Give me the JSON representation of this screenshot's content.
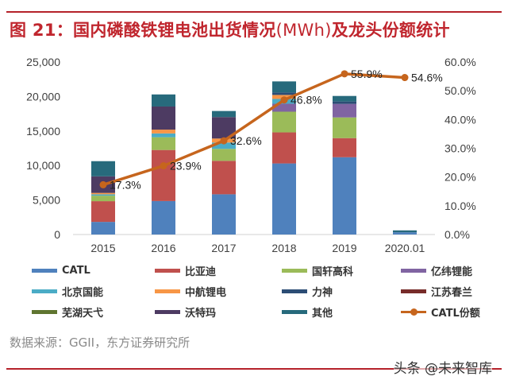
{
  "header": {
    "title_prefix": "图 21：国内磷酸铁锂电池出货情况",
    "title_unit": "(MWh)",
    "title_suffix": "及龙头份额统计"
  },
  "footer": {
    "source": "数据来源：GGII，东方证券研究所",
    "watermark": "头条 @未来智库"
  },
  "chart_data": {
    "type": "bar",
    "stacked": true,
    "title": "国内磷酸铁锂电池出货情况(MWh)及龙头份额统计",
    "categories": [
      "2015",
      "2016",
      "2017",
      "2018",
      "2019",
      "2020.01"
    ],
    "y_left": {
      "min": 0,
      "max": 25000,
      "ticks": [
        "0",
        "5,000",
        "10,000",
        "15,000",
        "20,000",
        "25,000"
      ],
      "tick_values": [
        0,
        5000,
        10000,
        15000,
        20000,
        25000
      ]
    },
    "y_right": {
      "min": 0,
      "max": 0.6,
      "ticks": [
        "0.0%",
        "10.0%",
        "20.0%",
        "30.0%",
        "40.0%",
        "50.0%",
        "60.0%"
      ],
      "tick_values": [
        0,
        0.1,
        0.2,
        0.3,
        0.4,
        0.5,
        0.6
      ]
    },
    "grid": false,
    "legend_position": "bottom",
    "series": [
      {
        "name": "CATL",
        "color": "#4f81bd",
        "values": [
          1830,
          4850,
          5830,
          10300,
          11200,
          330
        ]
      },
      {
        "name": "比亚迪",
        "color": "#c0504d",
        "values": [
          3000,
          7400,
          4850,
          4500,
          2770,
          0
        ]
      },
      {
        "name": "国轩高科",
        "color": "#9bbb59",
        "values": [
          800,
          1850,
          1730,
          3000,
          3000,
          0
        ]
      },
      {
        "name": "亿纬锂能",
        "color": "#8064a2",
        "values": [
          0,
          0,
          0,
          1150,
          1960,
          0
        ]
      },
      {
        "name": "北京国能",
        "color": "#4bacc6",
        "values": [
          200,
          550,
          920,
          700,
          0,
          0
        ]
      },
      {
        "name": "中航锂电",
        "color": "#f79646",
        "values": [
          200,
          550,
          580,
          580,
          0,
          0
        ]
      },
      {
        "name": "力神",
        "color": "#2c4d75",
        "values": [
          0,
          0,
          0,
          350,
          350,
          0
        ]
      },
      {
        "name": "江苏春兰",
        "color": "#772c2a",
        "values": [
          0,
          0,
          0,
          0,
          0,
          0
        ]
      },
      {
        "name": "芜湖天弋",
        "color": "#5f7530",
        "values": [
          0,
          0,
          0,
          0,
          0,
          0
        ]
      },
      {
        "name": "沃特玛",
        "color": "#4d3b62",
        "values": [
          2400,
          3350,
          3110,
          0,
          0,
          0
        ]
      },
      {
        "name": "其他",
        "color": "#276a7c",
        "values": [
          2200,
          1750,
          880,
          1610,
          800,
          270
        ]
      }
    ],
    "line_series": {
      "name": "CATL份额",
      "color": "#c6651d",
      "axis": "right",
      "values": [
        0.173,
        0.239,
        0.326,
        0.468,
        0.559,
        0.546
      ],
      "labels": [
        "17.3%",
        "23.9%",
        "32.6%",
        "46.8%",
        "55.9%",
        "54.6%"
      ]
    }
  },
  "legend": {
    "items": [
      {
        "label": "CATL",
        "color": "#4f81bd",
        "kind": "bar"
      },
      {
        "label": "比亚迪",
        "color": "#c0504d",
        "kind": "bar"
      },
      {
        "label": "国轩高科",
        "color": "#9bbb59",
        "kind": "bar"
      },
      {
        "label": "亿纬锂能",
        "color": "#8064a2",
        "kind": "bar"
      },
      {
        "label": "北京国能",
        "color": "#4bacc6",
        "kind": "bar"
      },
      {
        "label": "中航锂电",
        "color": "#f79646",
        "kind": "bar"
      },
      {
        "label": "力神",
        "color": "#2c4d75",
        "kind": "bar"
      },
      {
        "label": "江苏春兰",
        "color": "#772c2a",
        "kind": "bar"
      },
      {
        "label": "芜湖天弋",
        "color": "#5f7530",
        "kind": "bar"
      },
      {
        "label": "沃特玛",
        "color": "#4d3b62",
        "kind": "bar"
      },
      {
        "label": "其他",
        "color": "#276a7c",
        "kind": "bar"
      },
      {
        "label": "CATL份额",
        "color": "#c6651d",
        "kind": "line"
      }
    ]
  }
}
